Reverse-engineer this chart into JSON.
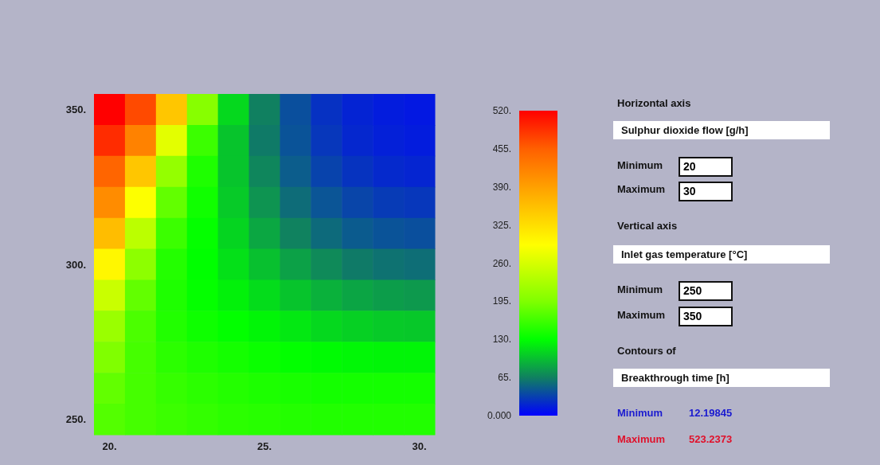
{
  "chart_data": {
    "type": "heatmap",
    "categories": [
      "20.",
      null,
      null,
      null,
      null,
      "25.",
      null,
      null,
      null,
      null,
      "30."
    ],
    "y_categories": [
      "350.",
      null,
      null,
      null,
      null,
      "300.",
      null,
      null,
      null,
      null,
      "250."
    ],
    "clim": [
      0,
      520
    ],
    "cticks": [
      {
        "value": 0,
        "label": "0.000"
      },
      {
        "value": 65,
        "label": "65."
      },
      {
        "value": 130,
        "label": "130."
      },
      {
        "value": 195,
        "label": "195."
      },
      {
        "value": 260,
        "label": "260."
      },
      {
        "value": 325,
        "label": "325."
      },
      {
        "value": 390,
        "label": "390."
      },
      {
        "value": 455,
        "label": "455."
      },
      {
        "value": 520,
        "label": "520."
      }
    ],
    "cells": [
      [
        520,
        470,
        350,
        200,
        110,
        65,
        40,
        25,
        18,
        14,
        12
      ],
      [
        490,
        420,
        270,
        160,
        100,
        62,
        42,
        28,
        20,
        16,
        14
      ],
      [
        450,
        350,
        210,
        145,
        100,
        68,
        47,
        34,
        26,
        21,
        19
      ],
      [
        410,
        290,
        180,
        138,
        103,
        75,
        55,
        43,
        35,
        30,
        28
      ],
      [
        360,
        240,
        160,
        132,
        108,
        85,
        66,
        54,
        46,
        42,
        40
      ],
      [
        300,
        205,
        148,
        130,
        114,
        98,
        82,
        70,
        62,
        58,
        56
      ],
      [
        250,
        180,
        145,
        132,
        123,
        112,
        100,
        90,
        84,
        80,
        78
      ],
      [
        215,
        168,
        147,
        137,
        131,
        125,
        118,
        110,
        106,
        103,
        102
      ],
      [
        195,
        165,
        152,
        145,
        140,
        135,
        131,
        128,
        126,
        125,
        125
      ],
      [
        180,
        165,
        157,
        152,
        148,
        144,
        142,
        140,
        140,
        140,
        140
      ],
      [
        172,
        165,
        160,
        156,
        152,
        150,
        148,
        147,
        147,
        147,
        147
      ]
    ],
    "annotations": [
      "Horizontal axis",
      "Sulphur dioxide flow [g/h]",
      "Minimum",
      "20",
      "Maximum",
      "30",
      "Vertical axis",
      "Inlet gas temperature [°C]",
      "Minimum",
      "250",
      "Maximum",
      "350",
      "Contours of",
      "Breakthrough time [h]",
      "Minimum",
      "12.19845",
      "Maximum",
      "523.2373"
    ]
  }
}
